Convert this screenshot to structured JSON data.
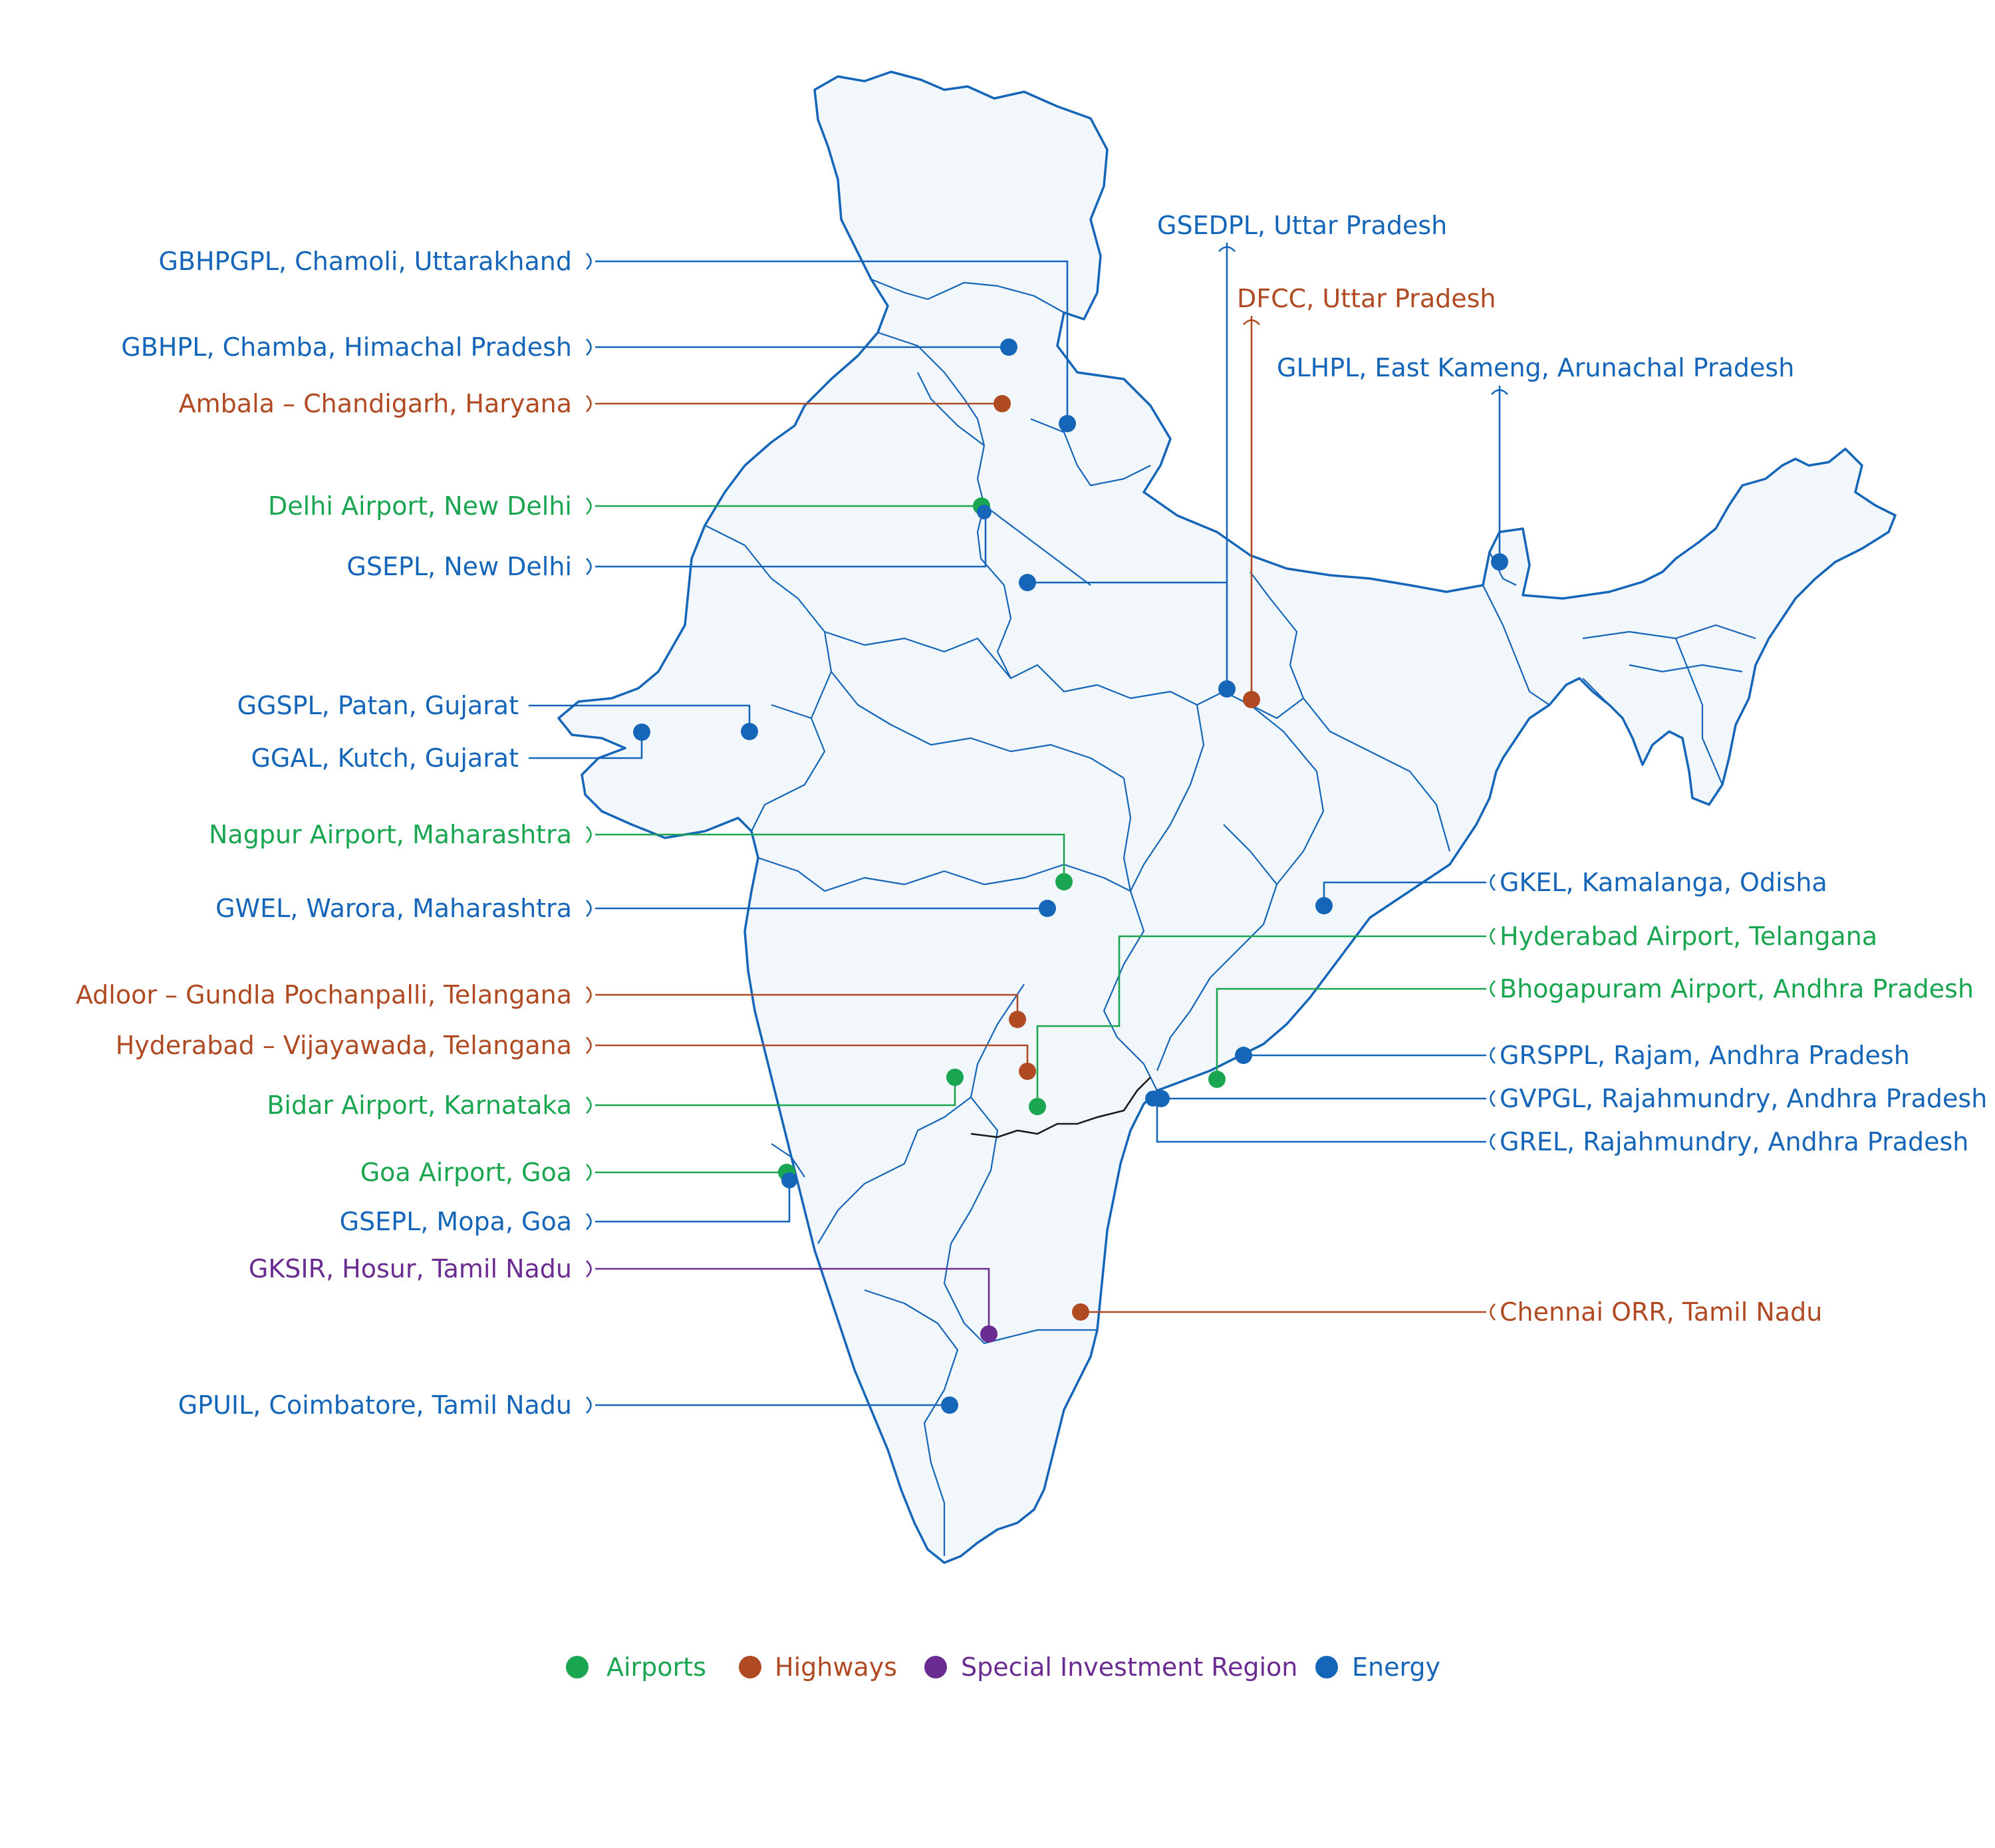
{
  "colors": {
    "airports": "#1aa551",
    "highways": "#b04a22",
    "special": "#6a2c91",
    "energy": "#1565b8"
  },
  "legend": [
    {
      "label": "Airports",
      "category": "airports"
    },
    {
      "label": "Highways",
      "category": "highways"
    },
    {
      "label": "Special Investment Region",
      "category": "special"
    },
    {
      "label": "Energy",
      "category": "energy"
    }
  ],
  "sites": [
    {
      "label": "GBHPGPL, Chamoli, Uttarakhand",
      "category": "energy"
    },
    {
      "label": "GBHPL, Chamba, Himachal Pradesh",
      "category": "energy"
    },
    {
      "label": "Ambala – Chandigarh, Haryana",
      "category": "highways"
    },
    {
      "label": "Delhi Airport, New Delhi",
      "category": "airports"
    },
    {
      "label": "GSEPL, New Delhi",
      "category": "energy"
    },
    {
      "label": "GGSPL, Patan, Gujarat",
      "category": "energy"
    },
    {
      "label": "GGAL, Kutch, Gujarat",
      "category": "energy"
    },
    {
      "label": "Nagpur Airport, Maharashtra",
      "category": "airports"
    },
    {
      "label": "GWEL, Warora, Maharashtra",
      "category": "energy"
    },
    {
      "label": "Adloor – Gundla Pochanpalli, Telangana",
      "category": "highways"
    },
    {
      "label": "Hyderabad – Vijayawada, Telangana",
      "category": "highways"
    },
    {
      "label": "Bidar Airport, Karnataka",
      "category": "airports"
    },
    {
      "label": "Goa Airport, Goa",
      "category": "airports"
    },
    {
      "label": "GSEPL, Mopa, Goa",
      "category": "energy"
    },
    {
      "label": "GKSIR, Hosur, Tamil Nadu",
      "category": "special"
    },
    {
      "label": "GPUIL, Coimbatore, Tamil Nadu",
      "category": "energy"
    },
    {
      "label": "GSEDPL, Uttar Pradesh",
      "category": "energy"
    },
    {
      "label": "DFCC, Uttar Pradesh",
      "category": "highways"
    },
    {
      "label": "GLHPL, East Kameng, Arunachal Pradesh",
      "category": "energy"
    },
    {
      "label": "GKEL, Kamalanga, Odisha",
      "category": "energy"
    },
    {
      "label": "Hyderabad Airport, Telangana",
      "category": "airports"
    },
    {
      "label": "Bhogapuram Airport, Andhra Pradesh",
      "category": "airports"
    },
    {
      "label": "GRSPPL, Rajam, Andhra Pradesh",
      "category": "energy"
    },
    {
      "label": "GVPGL, Rajahmundry, Andhra Pradesh",
      "category": "energy"
    },
    {
      "label": "GREL, Rajahmundry, Andhra Pradesh",
      "category": "energy"
    },
    {
      "label": "Chennai ORR, Tamil Nadu",
      "category": "highways"
    }
  ]
}
